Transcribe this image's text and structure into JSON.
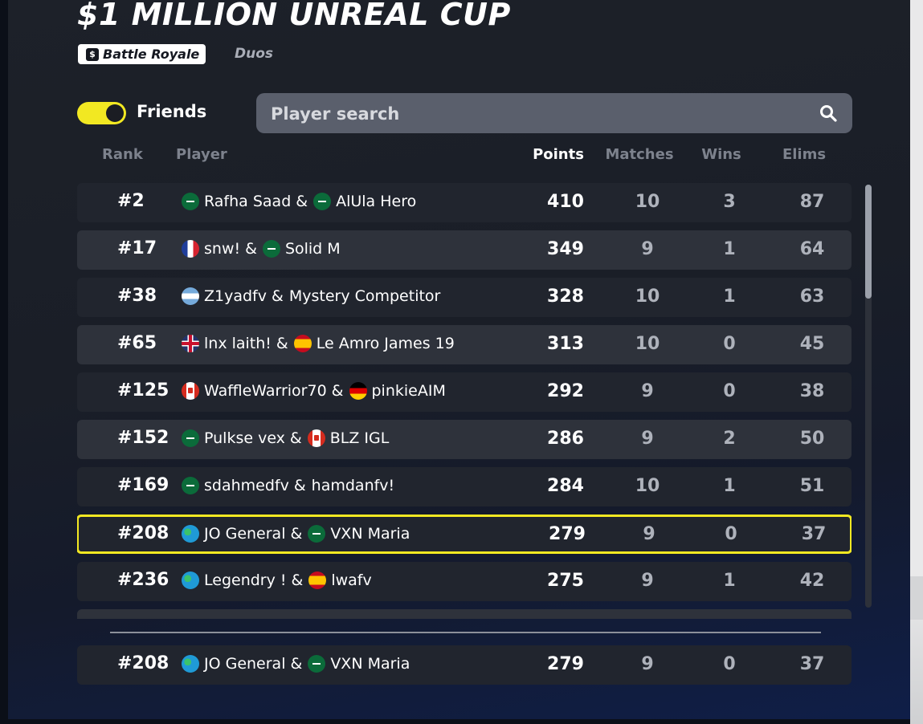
{
  "tournament": {
    "title": "$1 MILLION UNREAL CUP",
    "mode": "Battle Royale",
    "mode_type": "Duos"
  },
  "controls": {
    "friends_label": "Friends",
    "friends_enabled": true,
    "search_placeholder": "Player search"
  },
  "columns": {
    "rank": "Rank",
    "player": "Player",
    "points": "Points",
    "matches": "Matches",
    "wins": "Wins",
    "elims": "Elims"
  },
  "leaderboard": [
    {
      "rank": "#2",
      "p1": "Rafha Saad",
      "f1": "sa",
      "p2": "AlUla Hero",
      "f2": "sa",
      "points": "410",
      "matches": "10",
      "wins": "3",
      "elims": "87"
    },
    {
      "rank": "#17",
      "p1": "snw!",
      "f1": "fr",
      "p2": "Solid M",
      "f2": "sa",
      "points": "349",
      "matches": "9",
      "wins": "1",
      "elims": "64"
    },
    {
      "rank": "#38",
      "p1": "Z1yadfv",
      "f1": "ar",
      "p2": "Mystery Competitor",
      "f2": "",
      "points": "328",
      "matches": "10",
      "wins": "1",
      "elims": "63"
    },
    {
      "rank": "#65",
      "p1": "lnx laith!",
      "f1": "gb",
      "p2": "Le Amro James 19",
      "f2": "es",
      "points": "313",
      "matches": "10",
      "wins": "0",
      "elims": "45"
    },
    {
      "rank": "#125",
      "p1": "WaffleWarrior70",
      "f1": "ca",
      "p2": "pinkieAIM",
      "f2": "de",
      "points": "292",
      "matches": "9",
      "wins": "0",
      "elims": "38"
    },
    {
      "rank": "#152",
      "p1": "Pulkse vex",
      "f1": "sa",
      "p2": "BLZ IGL",
      "f2": "ca",
      "points": "286",
      "matches": "9",
      "wins": "2",
      "elims": "50"
    },
    {
      "rank": "#169",
      "p1": "sdahmedfv",
      "f1": "sa",
      "p2": "hamdanfv!",
      "f2": "",
      "points": "284",
      "matches": "10",
      "wins": "1",
      "elims": "51"
    },
    {
      "rank": "#208",
      "p1": "JO General",
      "f1": "globe",
      "p2": "VXN Maria",
      "f2": "sa",
      "points": "279",
      "matches": "9",
      "wins": "0",
      "elims": "37",
      "highlight": true
    },
    {
      "rank": "#236",
      "p1": "Legendry !",
      "f1": "globe",
      "p2": "lwafv",
      "f2": "es",
      "points": "275",
      "matches": "9",
      "wins": "1",
      "elims": "42"
    }
  ],
  "my_entry": {
    "rank": "#208",
    "p1": "JO General",
    "f1": "globe",
    "p2": "VXN Maria",
    "f2": "sa",
    "points": "279",
    "matches": "9",
    "wins": "0",
    "elims": "37"
  },
  "scroll": {
    "position_fraction": 0.0,
    "visible_fraction": 0.27
  }
}
